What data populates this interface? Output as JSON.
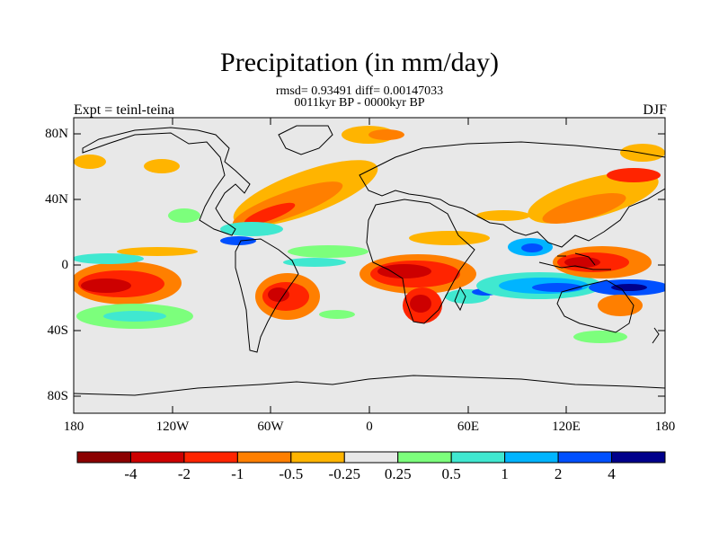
{
  "title": "Precipitation (in mm/day)",
  "stats": "rmsd= 0.93491  diff= 0.00147033",
  "period": "0011kyr BP - 0000kyr BP",
  "experiment": "Expt = teinl-teina",
  "season": "DJF",
  "lat_labels": [
    "80N",
    "40N",
    "0",
    "40S",
    "80S"
  ],
  "lon_labels": [
    "180",
    "120W",
    "60W",
    "0",
    "60E",
    "120E",
    "180"
  ],
  "colorbar": {
    "labels": [
      "-4",
      "-2",
      "-1",
      "-0.5",
      "-0.25",
      "0.25",
      "0.5",
      "1",
      "2",
      "4"
    ],
    "colors": [
      "#8b0000",
      "#cd0000",
      "#ff2400",
      "#ff7f00",
      "#ffb400",
      "#e8e8e8",
      "#7cff7c",
      "#40e8d0",
      "#00b4ff",
      "#0050ff",
      "#00008b"
    ]
  }
}
